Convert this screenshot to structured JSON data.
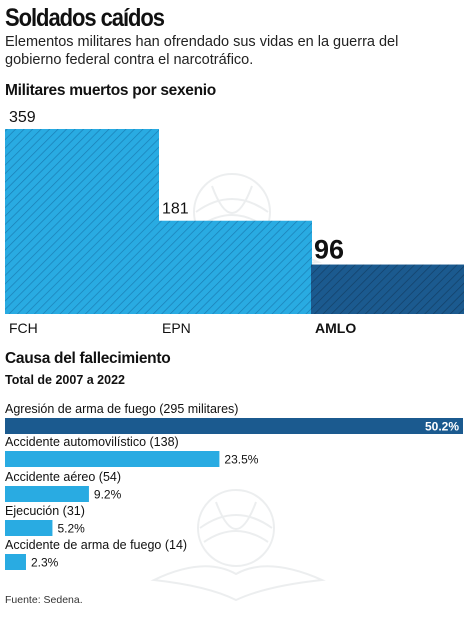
{
  "header": {
    "title": "Soldados caídos",
    "subtitle": "Elementos militares han ofrendado sus vidas en la guerra del gobierno federal contra el narcotráfico."
  },
  "chart_data": [
    {
      "type": "bar",
      "title": "Militares muertos por sexenio",
      "categories": [
        "FCH",
        "EPN",
        "AMLO"
      ],
      "values": [
        359,
        181,
        96
      ],
      "value_labels": [
        "359",
        "181",
        "96"
      ],
      "highlight": "AMLO",
      "ylim": [
        0,
        359
      ],
      "colors": {
        "bar": "#29abe2",
        "highlight": "#1b5a8f"
      }
    },
    {
      "type": "bar",
      "orientation": "horizontal",
      "title": "Causa del fallecimiento",
      "subtitle": "Total de 2007 a 2022",
      "categories": [
        "Agresión de arma de fuego (295 militares)",
        "Accidente automovilístico (138)",
        "Accidente aéreo (54)",
        "Ejecución (31)",
        "Accidente de arma de fuego (14)"
      ],
      "values": [
        50.2,
        23.5,
        9.2,
        5.2,
        2.3
      ],
      "value_labels": [
        "50.2%",
        "23.5%",
        "9.2%",
        "5.2%",
        "2.3%"
      ],
      "ylim": [
        0,
        50.2
      ],
      "colors": {
        "bar": "#29abe2",
        "highlight": "#1b5a8f"
      }
    }
  ],
  "footer": {
    "source": "Fuente: Sedena."
  }
}
